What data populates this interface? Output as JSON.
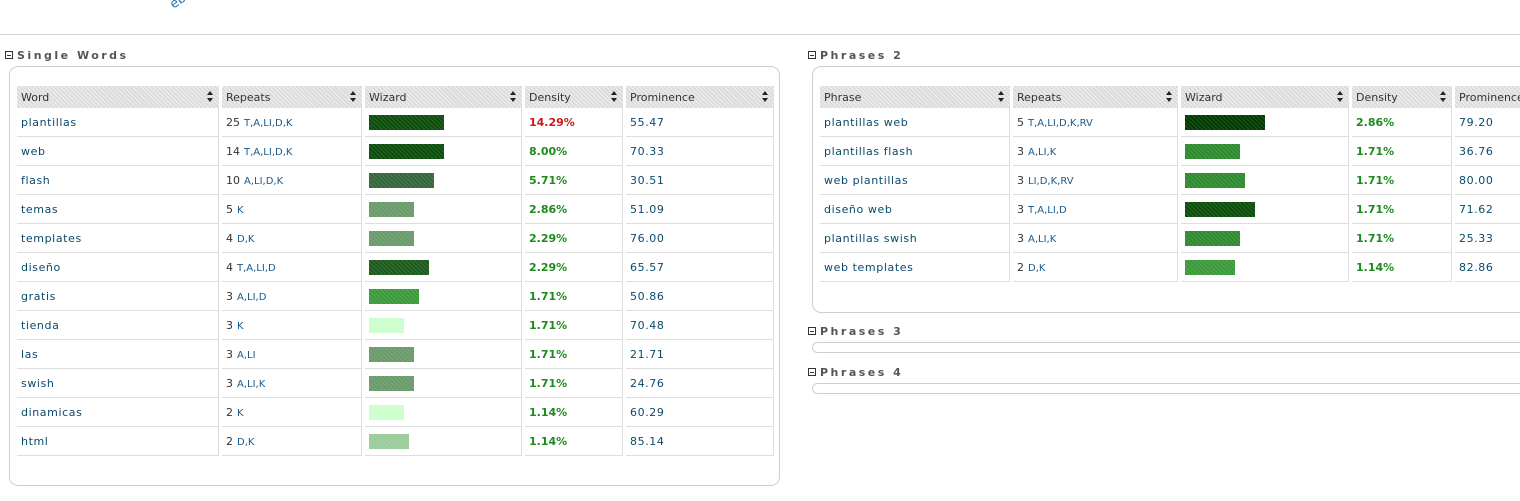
{
  "top_fragment": "eb",
  "sections": {
    "single": {
      "title": "Single Words"
    },
    "phrases2": {
      "title": "Phrases 2"
    },
    "phrases3": {
      "title": "Phrases 3"
    },
    "phrases4": {
      "title": "Phrases 4"
    }
  },
  "single_words": {
    "headers": [
      "Word",
      "Repeats",
      "Wizard",
      "Density",
      "Prominence"
    ],
    "rows": [
      {
        "word": "plantillas",
        "count": "25",
        "codes": "T,A,LI,D,K",
        "bar": 0.75,
        "color": "#0b4d0b",
        "density": "14.29%",
        "highlight": true,
        "prominence": "55.47"
      },
      {
        "word": "web",
        "count": "14",
        "codes": "T,A,LI,D,K",
        "bar": 0.75,
        "color": "#0b4d0b",
        "density": "8.00%",
        "highlight": false,
        "prominence": "70.33"
      },
      {
        "word": "flash",
        "count": "10",
        "codes": "A,LI,D,K",
        "bar": 0.65,
        "color": "#33663a",
        "density": "5.71%",
        "highlight": false,
        "prominence": "30.51"
      },
      {
        "word": "temas",
        "count": "5",
        "codes": "K",
        "bar": 0.45,
        "color": "#6a9a6a",
        "density": "2.86%",
        "highlight": false,
        "prominence": "51.09"
      },
      {
        "word": "templates",
        "count": "4",
        "codes": "D,K",
        "bar": 0.45,
        "color": "#6a9a6a",
        "density": "2.29%",
        "highlight": false,
        "prominence": "76.00"
      },
      {
        "word": "diseño",
        "count": "4",
        "codes": "T,A,LI,D",
        "bar": 0.6,
        "color": "#1c5a1c",
        "density": "2.29%",
        "highlight": false,
        "prominence": "65.57"
      },
      {
        "word": "gratis",
        "count": "3",
        "codes": "A,LI,D",
        "bar": 0.5,
        "color": "#3a9a3a",
        "density": "1.71%",
        "highlight": false,
        "prominence": "50.86"
      },
      {
        "word": "tienda",
        "count": "3",
        "codes": "K",
        "bar": 0.35,
        "color": "#ccffcc",
        "density": "1.71%",
        "highlight": false,
        "prominence": "70.48"
      },
      {
        "word": "las",
        "count": "3",
        "codes": "A,LI",
        "bar": 0.45,
        "color": "#6a9a6a",
        "density": "1.71%",
        "highlight": false,
        "prominence": "21.71"
      },
      {
        "word": "swish",
        "count": "3",
        "codes": "A,LI,K",
        "bar": 0.45,
        "color": "#6a9a6a",
        "density": "1.71%",
        "highlight": false,
        "prominence": "24.76"
      },
      {
        "word": "dinamicas",
        "count": "2",
        "codes": "K",
        "bar": 0.35,
        "color": "#ccffcc",
        "density": "1.14%",
        "highlight": false,
        "prominence": "60.29"
      },
      {
        "word": "html",
        "count": "2",
        "codes": "D,K",
        "bar": 0.4,
        "color": "#99cc99",
        "density": "1.14%",
        "highlight": false,
        "prominence": "85.14"
      }
    ]
  },
  "phrases2": {
    "headers": [
      "Phrase",
      "Repeats",
      "Wizard",
      "Density",
      "Prominence"
    ],
    "rows": [
      {
        "word": "plantillas web",
        "count": "5",
        "codes": "T,A,LI,D,K,RV",
        "bar": 0.8,
        "color": "#003a00",
        "density": "2.86%",
        "highlight": false,
        "prominence": "79.20"
      },
      {
        "word": "plantillas flash",
        "count": "3",
        "codes": "A,LI,K",
        "bar": 0.55,
        "color": "#2e8a2e",
        "density": "1.71%",
        "highlight": false,
        "prominence": "36.76"
      },
      {
        "word": "web plantillas",
        "count": "3",
        "codes": "LI,D,K,RV",
        "bar": 0.6,
        "color": "#2e8a2e",
        "density": "1.71%",
        "highlight": false,
        "prominence": "80.00"
      },
      {
        "word": "diseño web",
        "count": "3",
        "codes": "T,A,LI,D",
        "bar": 0.7,
        "color": "#0b4d0b",
        "density": "1.71%",
        "highlight": false,
        "prominence": "71.62"
      },
      {
        "word": "plantillas swish",
        "count": "3",
        "codes": "A,LI,K",
        "bar": 0.55,
        "color": "#2e8a2e",
        "density": "1.71%",
        "highlight": false,
        "prominence": "25.33"
      },
      {
        "word": "web templates",
        "count": "2",
        "codes": "D,K",
        "bar": 0.5,
        "color": "#3a9a3a",
        "density": "1.14%",
        "highlight": false,
        "prominence": "82.86"
      }
    ]
  }
}
